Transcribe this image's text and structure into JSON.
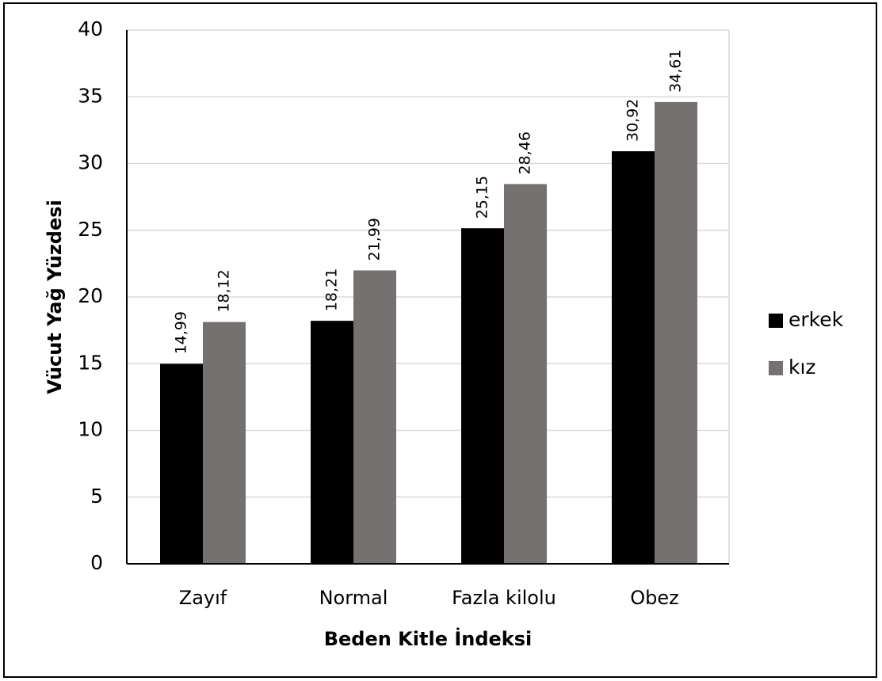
{
  "chart_data": {
    "type": "bar",
    "x_label": "Beden Kitle İndeksi",
    "y_label": "Vücut Yağ Yüzdesi",
    "categories": [
      "Zayıf",
      "Normal",
      "Fazla kilolu",
      "Obez"
    ],
    "series": [
      {
        "name": "erkek",
        "color": "#000000",
        "values": [
          14.99,
          18.21,
          25.15,
          30.92
        ],
        "value_labels": [
          "14,99",
          "18,21",
          "25,15",
          "30,92"
        ]
      },
      {
        "name": "kız",
        "color": "#767171",
        "values": [
          18.12,
          21.99,
          28.46,
          34.61
        ],
        "value_labels": [
          "18,12",
          "21,99",
          "28,46",
          "34,61"
        ]
      }
    ],
    "ylim": [
      0,
      40
    ],
    "yticks": [
      0,
      5,
      10,
      15,
      20,
      25,
      30,
      35,
      40
    ],
    "grid": true,
    "legend": "right"
  }
}
